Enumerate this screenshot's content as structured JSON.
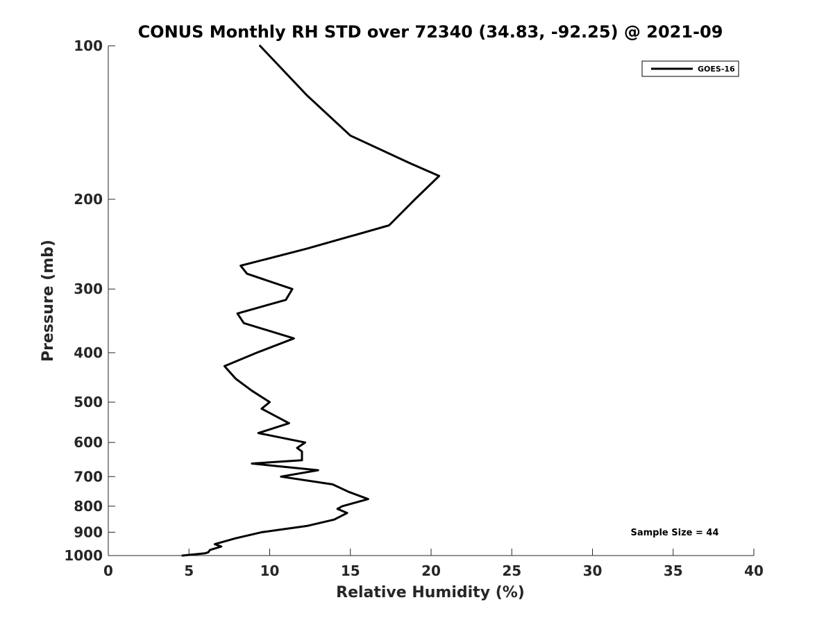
{
  "chart_data": {
    "type": "line",
    "title": "CONUS Monthly RH STD over 72340 (34.83, -92.25) @ 2021-09",
    "xlabel": "Relative Humidity (%)",
    "ylabel": "Pressure (mb)",
    "xlim": [
      0,
      40
    ],
    "ylim": [
      100,
      1000
    ],
    "y_scale": "log",
    "y_reversed": true,
    "grid": false,
    "legend_position": "top-right",
    "x_ticks": [
      "0",
      "5",
      "10",
      "15",
      "20",
      "25",
      "30",
      "35",
      "40"
    ],
    "y_ticks": [
      "100",
      "200",
      "300",
      "400",
      "500",
      "600",
      "700",
      "800",
      "900",
      "1000"
    ],
    "annotation": "Sample Size = 44",
    "series": [
      {
        "name": "GOES-16",
        "color": "#000000",
        "points": [
          [
            9.4,
            100
          ],
          [
            12.3,
            125
          ],
          [
            15.0,
            150
          ],
          [
            18.7,
            170
          ],
          [
            20.5,
            180
          ],
          [
            19.0,
            200
          ],
          [
            17.4,
            225
          ],
          [
            12.3,
            250
          ],
          [
            8.2,
            270
          ],
          [
            8.6,
            280
          ],
          [
            11.4,
            300
          ],
          [
            11.0,
            315
          ],
          [
            8.0,
            335
          ],
          [
            8.4,
            350
          ],
          [
            11.5,
            375
          ],
          [
            9.2,
            400
          ],
          [
            7.2,
            425
          ],
          [
            7.9,
            450
          ],
          [
            8.9,
            475
          ],
          [
            10.0,
            500
          ],
          [
            9.5,
            515
          ],
          [
            11.2,
            550
          ],
          [
            9.3,
            575
          ],
          [
            12.2,
            600
          ],
          [
            11.7,
            615
          ],
          [
            12.0,
            625
          ],
          [
            12.0,
            650
          ],
          [
            8.9,
            660
          ],
          [
            13.0,
            680
          ],
          [
            10.7,
            700
          ],
          [
            13.9,
            725
          ],
          [
            14.9,
            750
          ],
          [
            16.1,
            775
          ],
          [
            14.5,
            800
          ],
          [
            14.2,
            810
          ],
          [
            14.8,
            825
          ],
          [
            14.0,
            850
          ],
          [
            12.3,
            875
          ],
          [
            9.5,
            900
          ],
          [
            7.9,
            925
          ],
          [
            6.6,
            950
          ],
          [
            7.0,
            960
          ],
          [
            6.3,
            975
          ],
          [
            6.2,
            985
          ],
          [
            6.0,
            990
          ],
          [
            4.6,
            1000
          ]
        ]
      }
    ]
  }
}
